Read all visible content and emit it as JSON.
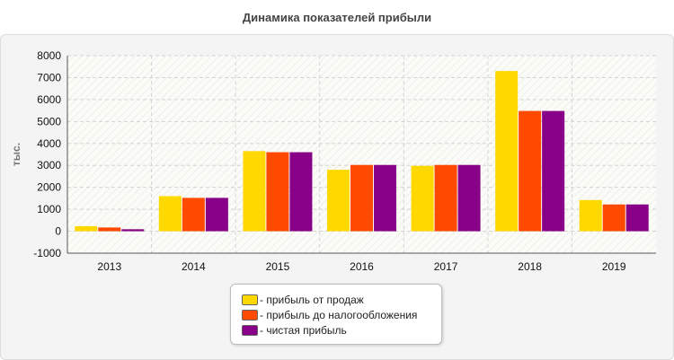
{
  "chart_data": {
    "type": "bar",
    "title": "Динамика показателей прибыли",
    "xlabel": "",
    "ylabel": "тыс.",
    "ylim": [
      -1000,
      8000
    ],
    "yticks": [
      "-1000",
      "0",
      "1000",
      "2000",
      "3000",
      "4000",
      "5000",
      "6000",
      "7000",
      "8000"
    ],
    "categories": [
      "2013",
      "2014",
      "2015",
      "2016",
      "2017",
      "2018",
      "2019"
    ],
    "series": [
      {
        "name": "- прибыль от продаж",
        "color": "#ffd800",
        "values": [
          230,
          1600,
          3650,
          2800,
          2980,
          7300,
          1420
        ]
      },
      {
        "name": "- прибыль до налогообложения",
        "color": "#ff4a00",
        "values": [
          170,
          1520,
          3600,
          3020,
          3020,
          5480,
          1220
        ]
      },
      {
        "name": "- чистая прибыль",
        "color": "#880088",
        "values": [
          90,
          1520,
          3600,
          3020,
          3020,
          5480,
          1220
        ]
      }
    ],
    "grid": true,
    "legend_position": "bottom-center"
  }
}
